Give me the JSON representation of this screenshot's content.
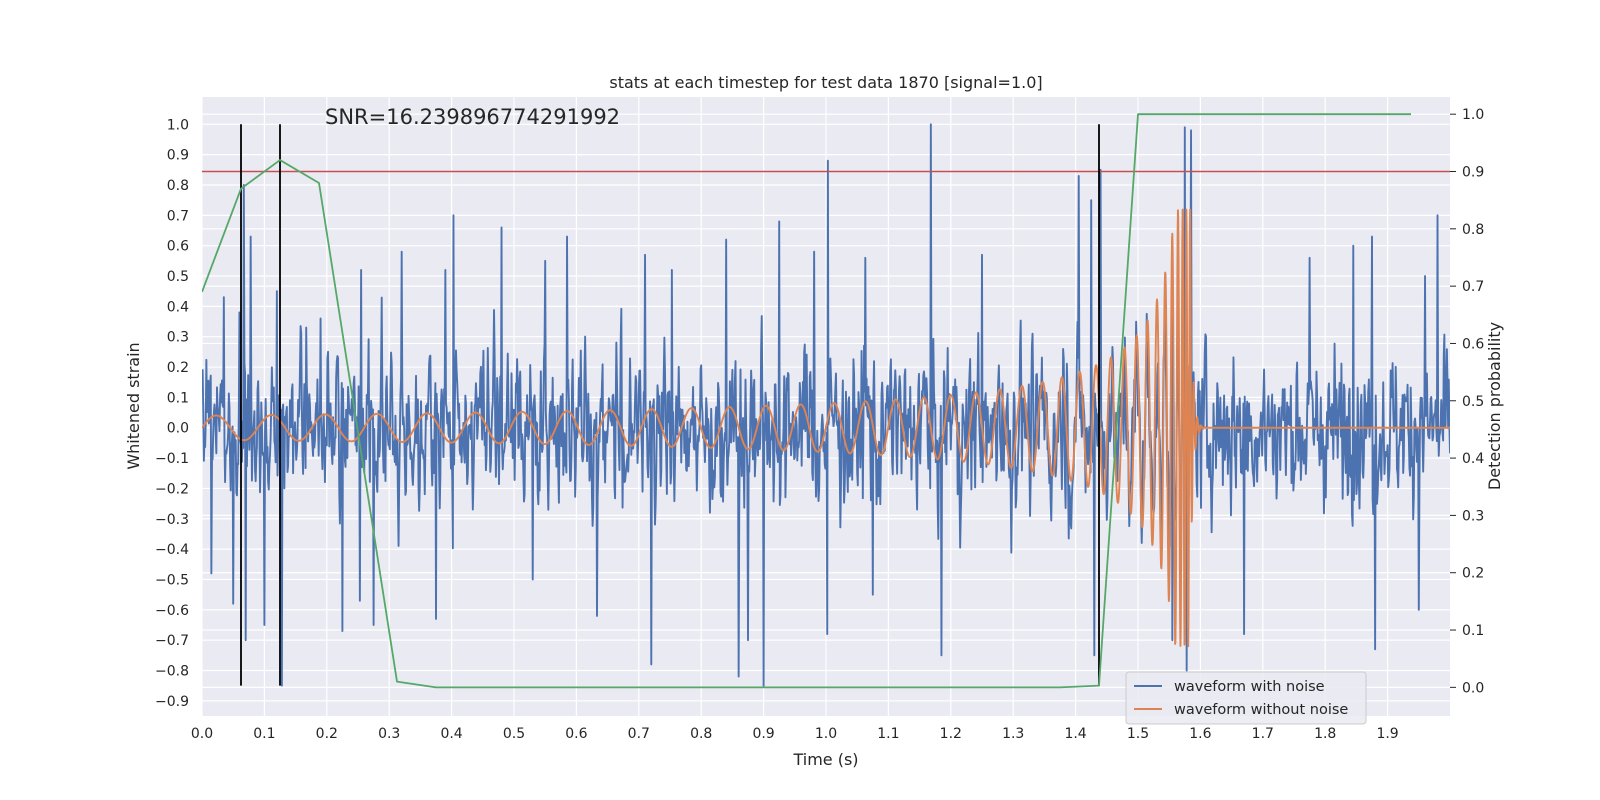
{
  "chart_data": {
    "type": "line",
    "title": "stats at each timestep for test data 1870 [signal=1.0]",
    "annotation": "SNR=16.239896774291992",
    "xlabel": "Time (s)",
    "ylabel": "Whitened strain",
    "y2label": "Detection probability",
    "xlim": [
      0.0,
      2.0
    ],
    "ylim": [
      -0.95,
      1.09
    ],
    "y2lim": [
      -0.05,
      1.03
    ],
    "xticks": [
      "0.0",
      "0.1",
      "0.2",
      "0.3",
      "0.4",
      "0.5",
      "0.6",
      "0.7",
      "0.8",
      "0.9",
      "1.0",
      "1.1",
      "1.2",
      "1.3",
      "1.4",
      "1.5",
      "1.6",
      "1.7",
      "1.8",
      "1.9"
    ],
    "yticks": [
      "-0.9",
      "-0.8",
      "-0.7",
      "-0.6",
      "-0.5",
      "-0.4",
      "-0.3",
      "-0.2",
      "-0.1",
      "0.0",
      "0.1",
      "0.2",
      "0.3",
      "0.4",
      "0.5",
      "0.6",
      "0.7",
      "0.8",
      "0.9",
      "1.0"
    ],
    "y2ticks": [
      "0.0",
      "0.1",
      "0.2",
      "0.3",
      "0.4",
      "0.5",
      "0.6",
      "0.7",
      "0.8",
      "0.9",
      "1.0"
    ],
    "grid": true,
    "legend_position": "lower-right",
    "colors": {
      "noisy": "#4c72b0",
      "clean": "#dd8452",
      "probability": "#55a868",
      "threshold": "#c44e52",
      "markers": "#000000",
      "background": "#eaeaf2",
      "grid": "#ffffff"
    },
    "series": [
      {
        "name": "waveform with noise",
        "axis": "left",
        "generated": true,
        "amplitude_range": [
          -0.85,
          1.0
        ]
      },
      {
        "name": "waveform without noise",
        "axis": "left",
        "chirp": {
          "t_start": 0.0,
          "t_merger": 1.585,
          "t_end": 2.0,
          "start_amplitude": 0.04,
          "peak_amplitude": 0.72,
          "freq_start": 11,
          "freq_end": 170
        }
      },
      {
        "axis": "right",
        "x": [
          0.0,
          0.0625,
          0.125,
          0.1875,
          0.3125,
          0.375,
          1.375,
          1.4375,
          1.5,
          1.9375
        ],
        "y": [
          0.69,
          0.87,
          0.92,
          0.88,
          0.01,
          0.0,
          0.0,
          0.003,
          1.0,
          1.0
        ]
      }
    ],
    "threshold": {
      "axis": "right",
      "value": 0.9
    },
    "vertical_markers": {
      "x": [
        0.0625,
        0.125,
        1.4375
      ],
      "y_range": [
        -0.85,
        1.0
      ]
    },
    "peaks": {
      "up": [
        [
          0.035,
          0.43
        ],
        [
          0.06,
          0.38
        ],
        [
          0.067,
          0.8
        ],
        [
          0.078,
          0.63
        ],
        [
          0.12,
          0.45
        ],
        [
          0.167,
          0.33
        ],
        [
          0.19,
          0.36
        ],
        [
          0.255,
          0.52
        ],
        [
          0.275,
          0.82
        ],
        [
          0.32,
          0.58
        ],
        [
          0.39,
          0.52
        ],
        [
          0.403,
          0.7
        ],
        [
          0.48,
          0.66
        ],
        [
          0.55,
          0.55
        ],
        [
          0.585,
          0.63
        ],
        [
          0.71,
          0.57
        ],
        [
          0.753,
          0.52
        ],
        [
          0.84,
          0.62
        ],
        [
          0.9,
          0.92
        ],
        [
          0.925,
          0.68
        ],
        [
          0.981,
          0.58
        ],
        [
          1.003,
          0.88
        ],
        [
          1.063,
          0.56
        ],
        [
          1.168,
          1.0
        ],
        [
          1.25,
          0.57
        ],
        [
          1.405,
          0.83
        ],
        [
          1.425,
          0.75
        ],
        [
          1.44,
          0.85
        ],
        [
          1.575,
          0.99
        ],
        [
          1.585,
          0.98
        ],
        [
          1.67,
          0.52
        ],
        [
          1.775,
          0.56
        ],
        [
          1.845,
          0.6
        ],
        [
          1.875,
          0.63
        ],
        [
          1.96,
          0.5
        ],
        [
          1.98,
          0.7
        ]
      ],
      "down": [
        [
          0.015,
          -0.48
        ],
        [
          0.05,
          -0.58
        ],
        [
          0.07,
          -0.7
        ],
        [
          0.1,
          -0.65
        ],
        [
          0.128,
          -0.85
        ],
        [
          0.225,
          -0.67
        ],
        [
          0.253,
          -0.57
        ],
        [
          0.275,
          -0.65
        ],
        [
          0.375,
          -0.63
        ],
        [
          0.53,
          -0.5
        ],
        [
          0.633,
          -0.62
        ],
        [
          0.72,
          -0.78
        ],
        [
          0.86,
          -0.82
        ],
        [
          0.875,
          -0.7
        ],
        [
          0.9,
          -0.85
        ],
        [
          1.002,
          -0.68
        ],
        [
          1.075,
          -0.55
        ],
        [
          1.185,
          -0.75
        ],
        [
          1.43,
          -0.75
        ],
        [
          1.555,
          -0.7
        ],
        [
          1.578,
          -0.8
        ],
        [
          1.67,
          -0.68
        ],
        [
          1.88,
          -0.73
        ],
        [
          1.95,
          -0.6
        ]
      ]
    }
  }
}
